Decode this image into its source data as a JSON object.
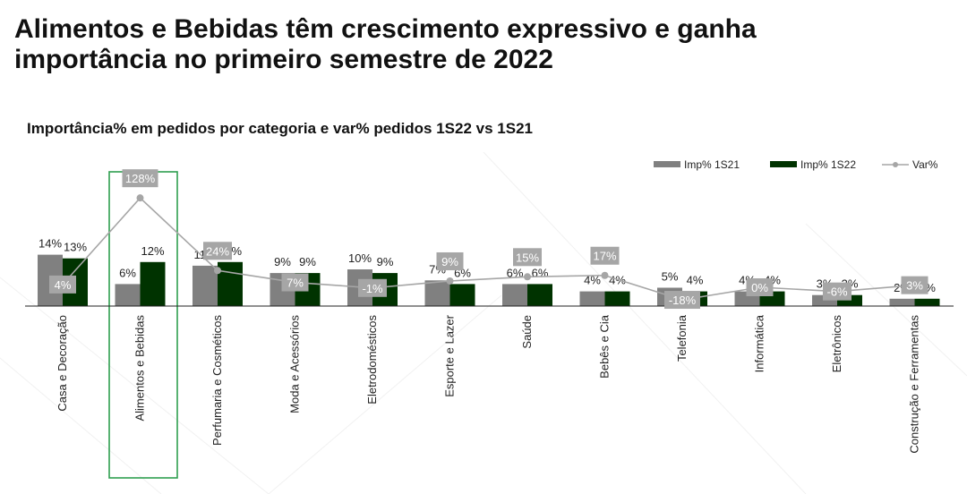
{
  "page": {
    "headline": "Alimentos e Bebidas têm crescimento expressivo e ganha importância no primeiro semestre de 2022",
    "highlight_category": "Alimentos e Bebidas"
  },
  "chart_data": {
    "type": "bar",
    "title": "Importância% em pedidos por categoria e var% pedidos 1S22 vs 1S21",
    "categories": [
      "Casa e Decoração",
      "Alimentos e Bebidas",
      "Perfumaria e Cosméticos",
      "Moda e Acessórios",
      "Eletrodomésticos",
      "Esporte e Lazer",
      "Saúde",
      "Bebês e Cia",
      "Telefonia",
      "Informática",
      "Eletrônicos",
      "Construção e Ferramentas"
    ],
    "series": [
      {
        "name": "Imp% 1S21",
        "type": "bar",
        "color": "#808080",
        "values": [
          14,
          6,
          11,
          9,
          10,
          7,
          6,
          4,
          5,
          4,
          3,
          2
        ],
        "labels": [
          "14%",
          "6%",
          "11%",
          "9%",
          "10%",
          "7%",
          "6%",
          "4%",
          "5%",
          "4%",
          "3%",
          "2%"
        ]
      },
      {
        "name": "Imp% 1S22",
        "type": "bar",
        "color": "#003300",
        "values": [
          13,
          12,
          12,
          9,
          9,
          6,
          6,
          4,
          4,
          4,
          3,
          2
        ],
        "labels": [
          "13%",
          "12%",
          "12%",
          "9%",
          "9%",
          "6%",
          "6%",
          "4%",
          "4%",
          "4%",
          "3%",
          "2%"
        ]
      },
      {
        "name": "Var%",
        "type": "line",
        "color": "#a6a6a6",
        "values": [
          4,
          128,
          24,
          7,
          -1,
          9,
          15,
          17,
          -18,
          0,
          -6,
          3
        ],
        "labels": [
          "4%",
          "128%",
          "24%",
          "7%",
          "-1%",
          "9%",
          "15%",
          "17%",
          "-18%",
          "0%",
          "-6%",
          "3%"
        ]
      }
    ],
    "legend_position": "top-right",
    "grid": false,
    "colors": {
      "highlight_box": "#2e9e4f"
    }
  }
}
